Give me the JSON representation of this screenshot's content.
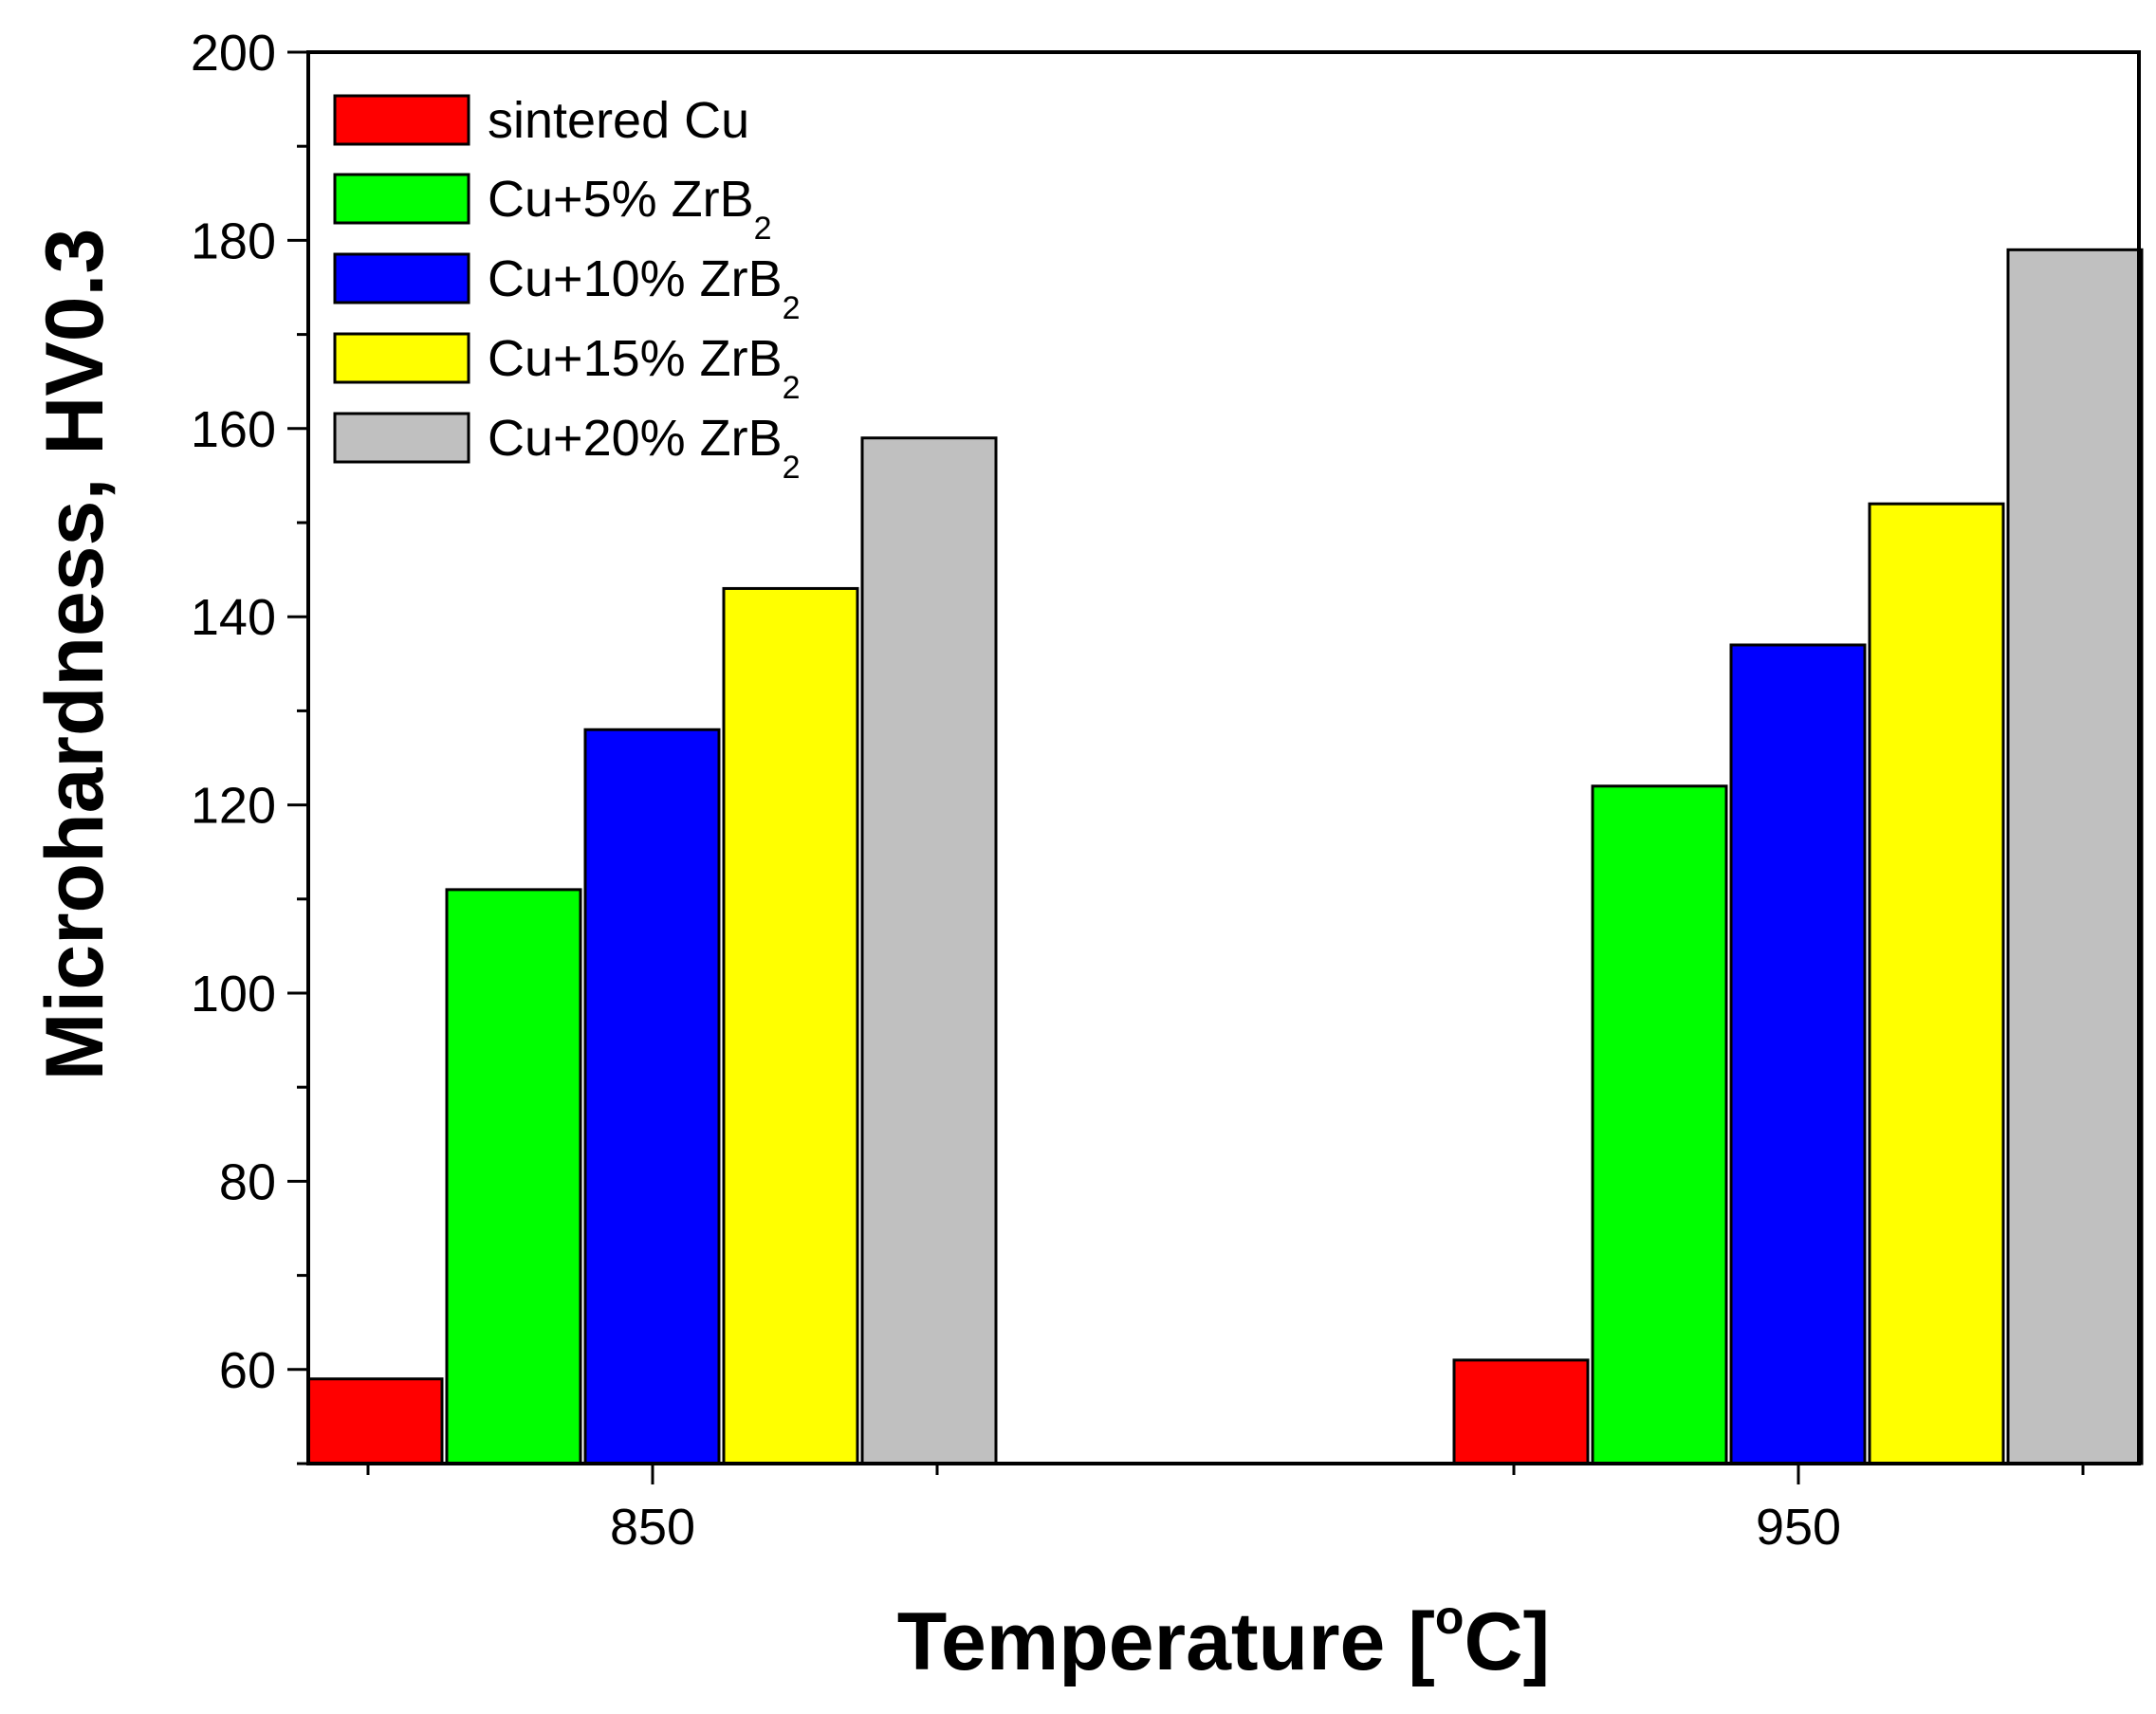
{
  "chart_data": {
    "type": "bar",
    "title": "",
    "xlabel": "Temperature [",
    "xlabel_sup": "o",
    "xlabel_unit": "C]",
    "ylabel": "Microhardness, HV0.3",
    "ylim": [
      50,
      200
    ],
    "yticks": [
      60,
      80,
      100,
      120,
      140,
      160,
      180,
      200
    ],
    "categories": [
      "850",
      "950"
    ],
    "grid": false,
    "legend_position": "top-left",
    "series": [
      {
        "name": "sintered Cu",
        "label_main": "sintered Cu",
        "label_sub": "",
        "color": "#ff0000",
        "values": [
          59,
          61
        ]
      },
      {
        "name": "Cu+5% ZrB2",
        "label_main": "Cu+5% ZrB",
        "label_sub": "2",
        "color": "#00ff00",
        "values": [
          111,
          122
        ]
      },
      {
        "name": "Cu+10% ZrB2",
        "label_main": "Cu+10% ZrB",
        "label_sub": "2",
        "color": "#0000ff",
        "values": [
          128,
          137
        ]
      },
      {
        "name": "Cu+15% ZrB2",
        "label_main": "Cu+15% ZrB",
        "label_sub": "2",
        "color": "#ffff00",
        "values": [
          143,
          152
        ]
      },
      {
        "name": "Cu+20% ZrB2",
        "label_main": "Cu+20% ZrB",
        "label_sub": "2",
        "color": "#c0c0c0",
        "values": [
          159,
          179
        ]
      }
    ]
  }
}
